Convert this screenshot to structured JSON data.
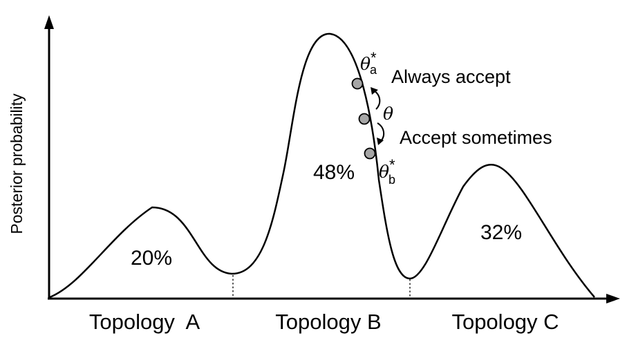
{
  "y_axis_label": "Posterior probability",
  "topologies": [
    {
      "label": "Topology  A",
      "probability": "20%"
    },
    {
      "label": "Topology B",
      "probability": "48%"
    },
    {
      "label": "Topology C",
      "probability": "32%"
    }
  ],
  "states": {
    "current": {
      "symbol": "θ",
      "subscript": ""
    },
    "proposal_a": {
      "symbol": "θ",
      "subscript": "a",
      "superscript": "*"
    },
    "proposal_b": {
      "symbol": "θ",
      "subscript": "b",
      "superscript": "*"
    }
  },
  "annotations": {
    "always_accept": "Always accept",
    "accept_sometimes": "Accept sometimes"
  },
  "colors": {
    "curve": "#000000",
    "point_fill": "#a6a6a6",
    "background": "#ffffff"
  }
}
